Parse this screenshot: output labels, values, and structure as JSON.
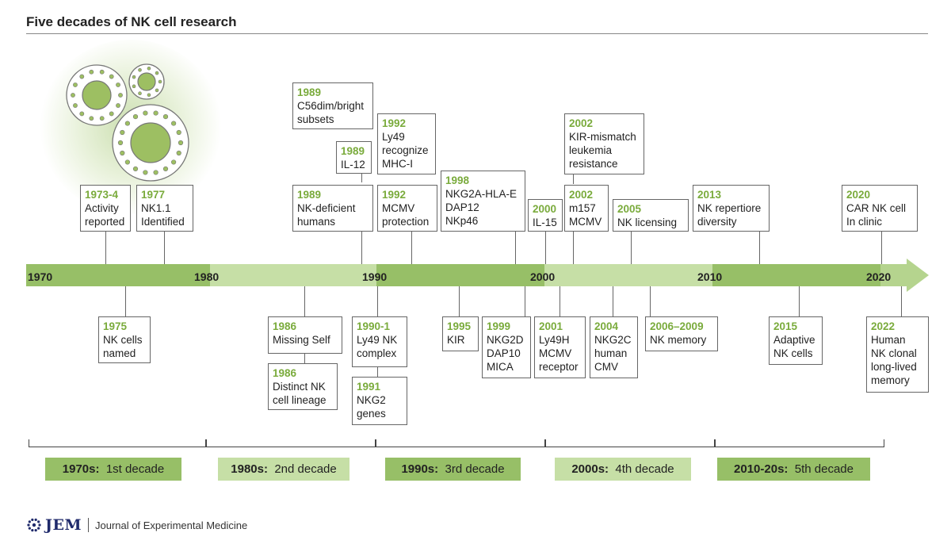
{
  "title": "Five decades of NK cell research",
  "colors": {
    "green_dark": "#97bf67",
    "green_light": "#c6dfa6",
    "year_green": "#7aab3c"
  },
  "axis_years": [
    "1970",
    "1980",
    "1990",
    "2000",
    "2010",
    "2020"
  ],
  "events_top": [
    {
      "year": "1973-4",
      "text": "Activity\nreported"
    },
    {
      "year": "1977",
      "text": "NK1.1\nIdentified"
    },
    {
      "year": "1989",
      "text": "C56dim/bright\nsubsets"
    },
    {
      "year": "1989",
      "text": "IL-12"
    },
    {
      "year": "1989",
      "text": "NK-deficient\nhumans"
    },
    {
      "year": "1992",
      "text": "Ly49\nrecognize\nMHC-I"
    },
    {
      "year": "1992",
      "text": "MCMV\nprotection"
    },
    {
      "year": "1998",
      "text": "NKG2A-HLA-E\nDAP12\nNKp46"
    },
    {
      "year": "2000",
      "text": "IL-15"
    },
    {
      "year": "2002",
      "text": "KIR-mismatch\nleukemia\nresistance"
    },
    {
      "year": "2002",
      "text": "m157\nMCMV"
    },
    {
      "year": "2005",
      "text": "NK licensing"
    },
    {
      "year": "2013",
      "text": "NK repertiore\ndiversity"
    },
    {
      "year": "2020",
      "text": "CAR NK cell\nIn clinic"
    }
  ],
  "events_bottom": [
    {
      "year": "1975",
      "text": "NK cells\nnamed"
    },
    {
      "year": "1986",
      "text": "Missing Self"
    },
    {
      "year": "1986",
      "text": "Distinct NK\ncell lineage"
    },
    {
      "year": "1990-1",
      "text": "Ly49 NK\ncomplex"
    },
    {
      "year": "1991",
      "text": "NKG2\ngenes"
    },
    {
      "year": "1995",
      "text": "KIR"
    },
    {
      "year": "1999",
      "text": "NKG2D\nDAP10\nMICA"
    },
    {
      "year": "2001",
      "text": "Ly49H\nMCMV\nreceptor"
    },
    {
      "year": "2004",
      "text": "NKG2C\nhuman\nCMV"
    },
    {
      "year": "2006–2009",
      "text": "NK memory"
    },
    {
      "year": "2015",
      "text": "Adaptive\nNK cells"
    },
    {
      "year": "2022",
      "text": "Human\nNK clonal\nlong-lived\nmemory"
    }
  ],
  "decades": [
    {
      "label": "1970s:",
      "name": "1st decade"
    },
    {
      "label": "1980s:",
      "name": "2nd decade"
    },
    {
      "label": "1990s:",
      "name": "3rd decade"
    },
    {
      "label": "2000s:",
      "name": "4th decade"
    },
    {
      "label": "2010-20s:",
      "name": "5th decade"
    }
  ],
  "footer": {
    "logo": "JEM",
    "journal": "Journal of Experimental Medicine",
    "logo_icon": "dotted-circle-icon"
  }
}
